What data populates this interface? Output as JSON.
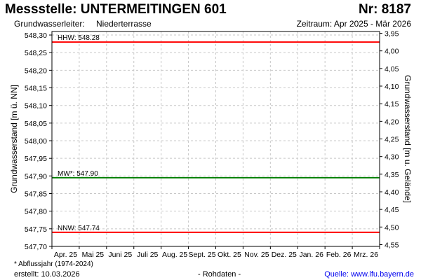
{
  "header": {
    "title": "Messstelle: UNTERMEITINGEN 601",
    "nr": "Nr: 8187",
    "aquifer_label": "Grundwasserleiter:",
    "aquifer_value": "Niederterrasse",
    "period": "Zeitraum: Apr 2025 - Mär 2026"
  },
  "footer": {
    "footnote": "* Abflussjahr (1974-2024)",
    "created": "erstellt:  10.03.2026",
    "rawdata": "- Rohdaten -",
    "source_label": "Quelle: ",
    "source_url": "www.lfu.bayern.de"
  },
  "colors": {
    "hhw": "#ff0000",
    "nnw": "#ff0000",
    "mw": "#008000",
    "grid": "#c8c8c8",
    "frame": "#000000"
  },
  "chart_data": {
    "type": "line",
    "ylabel": "Grundwasserstand [m ü. NN]",
    "y2label": "Grundwasserstand [m u. Gelände]",
    "ylim": [
      547.7,
      548.31
    ],
    "y2lim": [
      4.555,
      3.945
    ],
    "yticks": [
      547.7,
      547.75,
      547.8,
      547.85,
      547.9,
      547.95,
      548.0,
      548.05,
      548.1,
      548.15,
      548.2,
      548.25,
      548.3
    ],
    "ytick_labels": [
      "547,70",
      "547,75",
      "547,80",
      "547,85",
      "547,90",
      "547,95",
      "548,00",
      "548,05",
      "548,10",
      "548,15",
      "548,20",
      "548,25",
      "548,30"
    ],
    "y2ticks": [
      3.95,
      4.0,
      4.05,
      4.1,
      4.15,
      4.2,
      4.25,
      4.3,
      4.35,
      4.4,
      4.45,
      4.5,
      4.55
    ],
    "y2tick_labels": [
      "3,95",
      "4,00",
      "4,05",
      "4,10",
      "4,15",
      "4,20",
      "4,25",
      "4,30",
      "4,35",
      "4,40",
      "4,45",
      "4,50",
      "4,55"
    ],
    "x_categories": [
      "Apr. 25",
      "Mai 25",
      "Juni 25",
      "Juli 25",
      "Aug. 25",
      "Sept. 25",
      "Okt. 25",
      "Nov. 25",
      "Dez. 25",
      "Jan. 26",
      "Feb. 26",
      "Mrz. 26"
    ],
    "grid": true,
    "reference_lines": [
      {
        "key": "hhw",
        "label": "HHW: 548.28",
        "value": 548.28
      },
      {
        "key": "mw",
        "label": "MW*: 547.90",
        "value": 547.895
      },
      {
        "key": "nnw",
        "label": "NNW: 547.74",
        "value": 547.74
      }
    ],
    "series": []
  }
}
